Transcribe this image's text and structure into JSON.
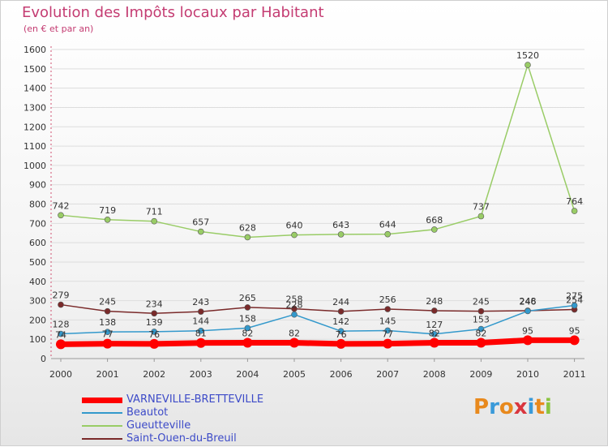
{
  "chart_data": {
    "type": "line",
    "title": "Evolution des Impôts locaux par Habitant",
    "subtitle": "(en € et par an)",
    "xlabel": "",
    "ylabel": "",
    "ylim": [
      0,
      1600
    ],
    "ytick_step": 100,
    "categories": [
      "2000",
      "2001",
      "2002",
      "2003",
      "2004",
      "2005",
      "2006",
      "2007",
      "2008",
      "2009",
      "2010",
      "2011"
    ],
    "series": [
      {
        "name": "VARNEVILLE-BRETTEVILLE",
        "color": "#ff0000",
        "values": [
          74,
          77,
          76,
          81,
          82,
          82,
          76,
          77,
          82,
          82,
          95,
          95
        ],
        "labels": [
          "74",
          "77",
          "76",
          "81",
          "82",
          "82",
          "76",
          "77",
          "82",
          "82",
          "95",
          "95"
        ]
      },
      {
        "name": "Beautot",
        "color": "#3399cc",
        "values": [
          128,
          138,
          139,
          144,
          158,
          228,
          142,
          145,
          127,
          153,
          246,
          275
        ],
        "labels": [
          "128",
          "138",
          "139",
          "144",
          "158",
          "228",
          "142",
          "145",
          "127",
          "153",
          "246",
          "275"
        ]
      },
      {
        "name": "Gueutteville",
        "color": "#99cc66",
        "values": [
          742,
          719,
          711,
          657,
          628,
          640,
          643,
          644,
          668,
          737,
          1520,
          764
        ],
        "labels": [
          "742",
          "719",
          "711",
          "657",
          "628",
          "640",
          "643",
          "644",
          "668",
          "737",
          "1520",
          "764"
        ]
      },
      {
        "name": "Saint-Ouen-du-Breuil",
        "color": "#7a2a2a",
        "values": [
          279,
          245,
          234,
          243,
          265,
          258,
          244,
          256,
          248,
          245,
          248,
          254
        ],
        "labels": [
          "279",
          "245",
          "234",
          "243",
          "265",
          "258",
          "244",
          "256",
          "248",
          "245",
          "248",
          "254"
        ]
      }
    ]
  },
  "logo": {
    "letters": [
      "P",
      "r",
      "o",
      "x",
      "i",
      "t",
      "i"
    ],
    "colors": [
      "#e8891d",
      "#3a9ad9",
      "#e8891d",
      "#d9363e",
      "#3a9ad9",
      "#e8891d",
      "#8ac43f"
    ]
  }
}
